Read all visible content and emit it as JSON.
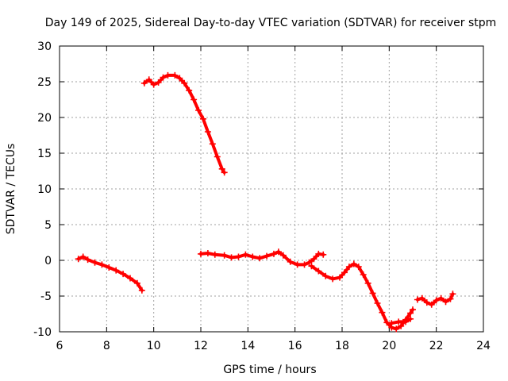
{
  "chart_data": {
    "type": "scatter",
    "title": "Day 149 of 2025, Sidereal Day-to-day VTEC variation (SDTVAR) for receiver stpm",
    "xlabel": "GPS time / hours",
    "ylabel": "SDTVAR / TECUs",
    "xlim": [
      6,
      24
    ],
    "ylim": [
      -10,
      30
    ],
    "xticks": [
      "6",
      "8",
      "10",
      "12",
      "14",
      "16",
      "18",
      "20",
      "22",
      "24"
    ],
    "yticks": [
      "-10",
      "-5",
      "0",
      "5",
      "10",
      "15",
      "20",
      "25",
      "30"
    ],
    "grid": true,
    "series": [
      {
        "name": "SDTVAR",
        "color": "#ff0000",
        "segments": [
          [
            [
              6.8,
              0.2
            ],
            [
              7.0,
              0.5
            ],
            [
              7.2,
              0.1
            ],
            [
              7.5,
              -0.3
            ],
            [
              7.8,
              -0.6
            ],
            [
              8.1,
              -1.0
            ],
            [
              8.4,
              -1.4
            ],
            [
              8.7,
              -1.9
            ],
            [
              9.0,
              -2.5
            ],
            [
              9.3,
              -3.2
            ],
            [
              9.5,
              -4.2
            ]
          ],
          [
            [
              9.6,
              24.8
            ],
            [
              9.8,
              25.3
            ],
            [
              10.0,
              24.6
            ],
            [
              10.2,
              24.9
            ],
            [
              10.4,
              25.6
            ],
            [
              10.6,
              25.9
            ],
            [
              10.9,
              25.9
            ],
            [
              11.1,
              25.5
            ],
            [
              11.3,
              24.8
            ],
            [
              11.5,
              23.8
            ],
            [
              11.7,
              22.5
            ],
            [
              11.9,
              21.0
            ],
            [
              12.1,
              19.8
            ],
            [
              12.3,
              18.0
            ],
            [
              12.5,
              16.3
            ],
            [
              12.7,
              14.5
            ],
            [
              12.9,
              12.8
            ],
            [
              13.0,
              12.3
            ]
          ],
          [
            [
              12.0,
              0.9
            ],
            [
              12.3,
              1.0
            ],
            [
              12.6,
              0.8
            ],
            [
              13.0,
              0.7
            ],
            [
              13.3,
              0.4
            ],
            [
              13.6,
              0.5
            ],
            [
              13.9,
              0.8
            ],
            [
              14.2,
              0.5
            ],
            [
              14.5,
              0.3
            ],
            [
              14.8,
              0.6
            ],
            [
              15.1,
              0.9
            ],
            [
              15.3,
              1.2
            ],
            [
              15.5,
              0.7
            ],
            [
              15.8,
              -0.2
            ],
            [
              16.1,
              -0.6
            ],
            [
              16.4,
              -0.6
            ],
            [
              16.6,
              -0.3
            ],
            [
              16.8,
              0.2
            ],
            [
              17.0,
              0.9
            ],
            [
              17.2,
              0.8
            ]
          ],
          [
            [
              16.7,
              -0.8
            ],
            [
              17.0,
              -1.5
            ],
            [
              17.3,
              -2.2
            ],
            [
              17.6,
              -2.6
            ],
            [
              17.9,
              -2.4
            ],
            [
              18.1,
              -1.7
            ],
            [
              18.3,
              -0.9
            ],
            [
              18.5,
              -0.5
            ],
            [
              18.7,
              -0.9
            ],
            [
              18.9,
              -2.0
            ],
            [
              19.1,
              -3.2
            ],
            [
              19.3,
              -4.6
            ],
            [
              19.5,
              -6.0
            ],
            [
              19.7,
              -7.3
            ],
            [
              19.9,
              -8.7
            ],
            [
              20.1,
              -9.4
            ],
            [
              20.3,
              -9.6
            ],
            [
              20.5,
              -9.2
            ],
            [
              20.7,
              -8.3
            ],
            [
              20.9,
              -7.4
            ],
            [
              21.0,
              -6.9
            ]
          ],
          [
            [
              20.1,
              -8.8
            ],
            [
              20.4,
              -8.6
            ],
            [
              20.7,
              -8.6
            ],
            [
              20.9,
              -8.2
            ]
          ],
          [
            [
              21.2,
              -5.5
            ],
            [
              21.4,
              -5.3
            ],
            [
              21.6,
              -5.9
            ],
            [
              21.8,
              -6.2
            ],
            [
              22.0,
              -5.6
            ],
            [
              22.2,
              -5.3
            ],
            [
              22.4,
              -5.8
            ],
            [
              22.6,
              -5.4
            ],
            [
              22.7,
              -4.7
            ]
          ]
        ]
      }
    ]
  }
}
